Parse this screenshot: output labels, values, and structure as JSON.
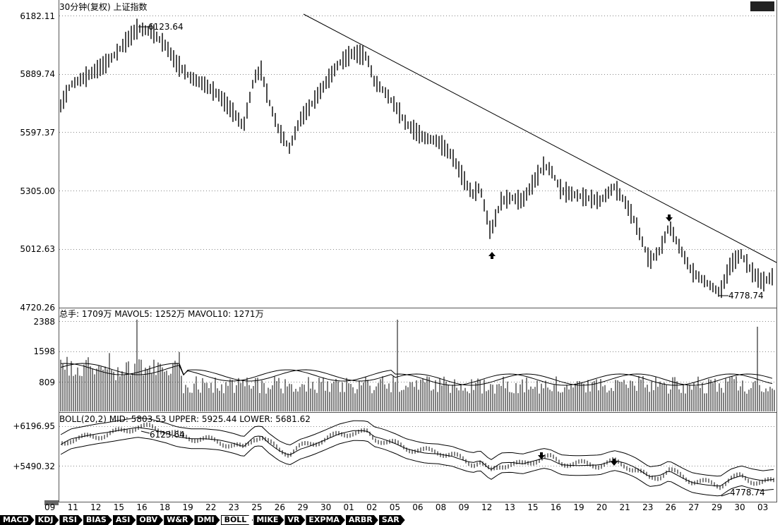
{
  "header": {
    "title": "30分钟(复权)  上证指数"
  },
  "price_axis": {
    "labels": [
      "6182.11",
      "5889.74",
      "5597.37",
      "5305.00",
      "5012.63",
      "4720.26"
    ]
  },
  "price_annotations": {
    "high": "6123.64",
    "low": "4778.74"
  },
  "volume_panel": {
    "info": "总手: 1709万 MAVOL5: 1252万 MAVOL10: 1271万",
    "axis_labels": [
      "2388",
      "1598",
      "809"
    ]
  },
  "boll_panel": {
    "info": "BOLL(20,2) MID: 5803.53 UPPER: 5925.44 LOWER: 5681.62",
    "axis_labels": [
      "+6196.95",
      "+5490.32"
    ],
    "high_label": "6123.64",
    "low_label": "4778.74"
  },
  "x_axis": {
    "labels": [
      "09",
      "11",
      "12",
      "15",
      "16",
      "18",
      "19",
      "22",
      "23",
      "25",
      "26",
      "29",
      "30",
      "01",
      "02",
      "05",
      "06",
      "08",
      "09",
      "12",
      "13",
      "15",
      "16",
      "19",
      "20",
      "21",
      "23",
      "26",
      "27",
      "29",
      "30",
      "03"
    ]
  },
  "indicator_tabs": [
    "MACD",
    "KDJ",
    "RSI",
    "BIAS",
    "ASI",
    "OBV",
    "W&R",
    "DMI",
    "BOLL",
    "MIKE",
    "VR",
    "EXPMA",
    "ARBR",
    "SAR"
  ],
  "active_tab": "BOLL",
  "colors": {
    "line": "#000000",
    "grid": "#888888",
    "background": "#ffffff"
  }
}
